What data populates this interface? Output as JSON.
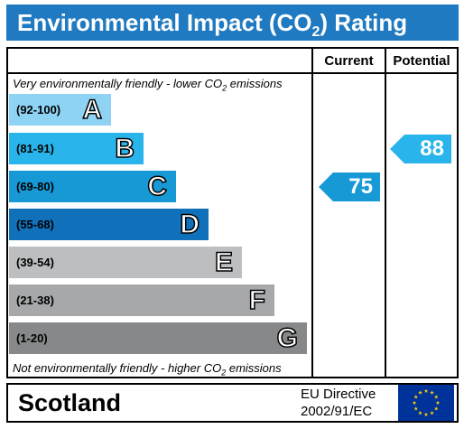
{
  "title": {
    "prefix": "Environmental Impact (CO",
    "subscript": "2",
    "suffix": ") Rating"
  },
  "columns": {
    "current": "Current",
    "potential": "Potential"
  },
  "notes": {
    "top_prefix": "Very environmentally friendly - lower CO",
    "top_sub": "2",
    "top_suffix": " emissions",
    "bottom_prefix": "Not environmentally friendly - higher CO",
    "bottom_sub": "2",
    "bottom_suffix": " emissions"
  },
  "bands": [
    {
      "range": "(92-100)",
      "letter": "A",
      "color": "#8fd3f4"
    },
    {
      "range": "(81-91)",
      "letter": "B",
      "color": "#29b5ec"
    },
    {
      "range": "(69-80)",
      "letter": "C",
      "color": "#1799d6"
    },
    {
      "range": "(55-68)",
      "letter": "D",
      "color": "#1070ba"
    },
    {
      "range": "(39-54)",
      "letter": "E",
      "color": "#bcbec0"
    },
    {
      "range": "(21-38)",
      "letter": "F",
      "color": "#a6a8aa"
    },
    {
      "range": "(1-20)",
      "letter": "G",
      "color": "#868889"
    }
  ],
  "ratings": {
    "current": {
      "value": "75",
      "band": "C",
      "color": "#1799d6"
    },
    "potential": {
      "value": "88",
      "band": "B",
      "color": "#29b5ec"
    }
  },
  "footer": {
    "region": "Scotland",
    "directive_line1": "EU Directive",
    "directive_line2": "2002/91/EC",
    "flag_icon": "eu-flag-icon"
  }
}
